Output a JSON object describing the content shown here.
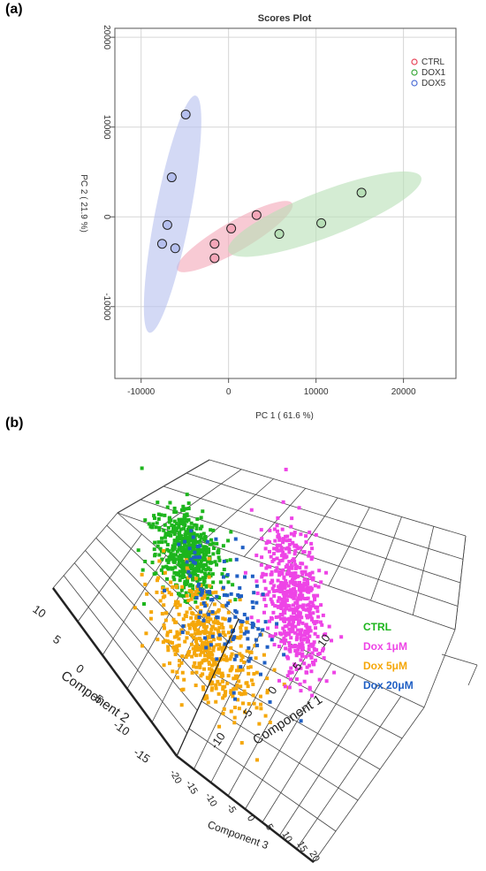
{
  "panels": {
    "a": "(a)",
    "b": "(b)"
  },
  "chart_data": [
    {
      "type": "scatter",
      "title": "Scores Plot",
      "xlabel": "PC 1 ( 61.6 %)",
      "ylabel": "PC 2 ( 21.9 %)",
      "xlim": [
        -13000,
        26000
      ],
      "ylim": [
        -18000,
        21000
      ],
      "xticks": [
        -10000,
        0,
        10000,
        20000
      ],
      "yticks": [
        -10000,
        0,
        10000,
        20000
      ],
      "grid": true,
      "legend": "top-right",
      "series": [
        {
          "name": "CTRL",
          "color": "#e8465a",
          "fill": "#f4a6b8",
          "points": [
            [
              -1600,
              -3000
            ],
            [
              -1600,
              -4600
            ],
            [
              300,
              -1300
            ],
            [
              3200,
              200
            ]
          ],
          "ellipse": {
            "cx": 700,
            "cy": -2200,
            "rx": 7600,
            "ry": 1700,
            "angle_deg": 30
          }
        },
        {
          "name": "DOX1",
          "color": "#39a83b",
          "fill": "#b7dfb6",
          "points": [
            [
              5800,
              -1900
            ],
            [
              10600,
              -700
            ],
            [
              15200,
              2700
            ]
          ],
          "ellipse": {
            "cx": 11000,
            "cy": 300,
            "rx": 11800,
            "ry": 2600,
            "angle_deg": 21
          }
        },
        {
          "name": "DOX5",
          "color": "#4f6fd6",
          "fill": "#b5bfee",
          "points": [
            [
              -4900,
              11400
            ],
            [
              -6500,
              4400
            ],
            [
              -7000,
              -900
            ],
            [
              -7600,
              -3000
            ],
            [
              -6100,
              -3500
            ]
          ],
          "ellipse": {
            "cx": -6400,
            "cy": 300,
            "rx": 13800,
            "ry": 2000,
            "angle_deg": 79
          }
        }
      ]
    },
    {
      "type": "scatter",
      "dims": 3,
      "xlabel": "Component 1",
      "ylabel": "Component 2",
      "zlabel": "Component 3",
      "xticks": [
        "-10",
        "-5",
        "0",
        "5",
        "10"
      ],
      "yticks": [
        "10",
        "5",
        "0",
        "-5",
        "-10",
        "-15"
      ],
      "zticks": [
        "-20",
        "-15",
        "-10",
        "-5",
        "0",
        "5",
        "10",
        "15",
        "20"
      ],
      "grid": true,
      "legend": "right",
      "series": [
        {
          "name": "CTRL",
          "color": "#1db51d"
        },
        {
          "name": "Dox 1μM",
          "color": "#ee44e6"
        },
        {
          "name": "Dox 5μM",
          "color": "#f5a70a"
        },
        {
          "name": "Dox 20μM",
          "color": "#1f5fc4"
        }
      ]
    }
  ]
}
